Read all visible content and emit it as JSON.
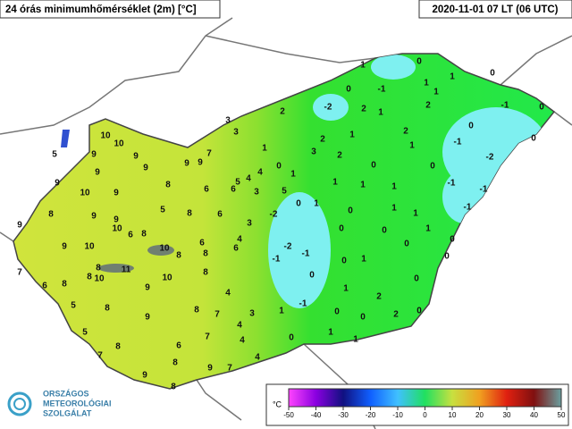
{
  "header": {
    "title": "24 órás minimumhőmérséklet (2m) [°C]",
    "date": "2020-11-01 07 LT (06 UTC)"
  },
  "legend": {
    "unit": "°C",
    "ticks": [
      -50,
      -40,
      -30,
      -20,
      -10,
      0,
      10,
      20,
      30,
      40,
      50
    ]
  },
  "logo": {
    "lines": [
      "ORSZÁGOS",
      "METEOROLÓGIAI",
      "SZOLGÁLAT"
    ]
  },
  "station_values": [
    1,
    0,
    0,
    0,
    -1,
    1,
    1,
    1,
    -2,
    2,
    1,
    2,
    -1,
    0,
    2,
    3,
    3,
    0,
    2,
    2,
    1,
    -1,
    0,
    1,
    3,
    2,
    1,
    -2,
    7,
    9,
    9,
    0,
    0,
    0,
    9,
    9,
    10,
    10,
    5,
    9,
    9,
    9,
    4,
    5,
    4,
    1,
    1,
    1,
    1,
    -1,
    -1,
    6,
    6,
    8,
    9,
    10,
    3,
    5,
    -2,
    0,
    1,
    0,
    1,
    1,
    -1,
    8,
    9,
    9,
    5,
    8,
    6,
    3,
    0,
    0,
    1,
    9,
    10,
    6,
    8,
    9,
    10,
    10,
    6,
    6,
    4,
    -2,
    -1,
    -1,
    0,
    0,
    7,
    8,
    10,
    11,
    8,
    8,
    0,
    1,
    0,
    8,
    8,
    10,
    8,
    0,
    0,
    6,
    9,
    4,
    1,
    2,
    5,
    8,
    8,
    -1,
    3,
    1,
    7,
    0,
    2,
    0,
    9,
    0,
    5,
    7,
    4,
    1,
    1,
    0,
    4,
    8,
    6,
    7,
    8,
    4,
    7,
    9,
    9,
    8
  ]
}
